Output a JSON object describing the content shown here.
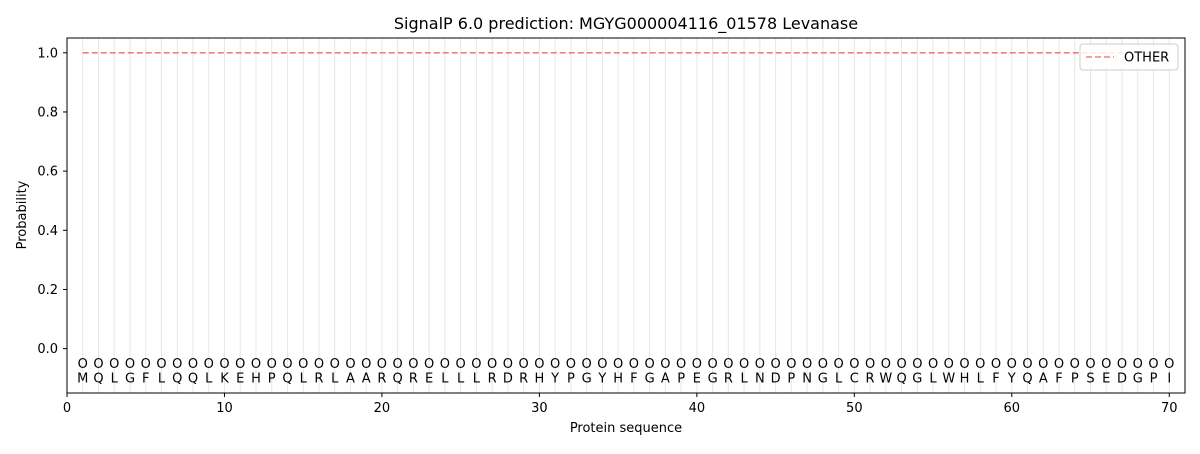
{
  "chart_data": {
    "type": "line",
    "title": "SignalP 6.0 prediction: MGYG000004116_01578 Levanase",
    "xlabel": "Protein sequence",
    "ylabel": "Probability",
    "xlim": [
      0,
      71
    ],
    "ylim": [
      -0.15,
      1.05
    ],
    "x_ticks": [
      0,
      10,
      20,
      30,
      40,
      50,
      60,
      70
    ],
    "y_ticks": [
      0.0,
      0.2,
      0.4,
      0.6,
      0.8,
      1.0
    ],
    "sequence": [
      "M",
      "Q",
      "L",
      "G",
      "F",
      "L",
      "Q",
      "Q",
      "L",
      "K",
      "E",
      "H",
      "P",
      "Q",
      "L",
      "R",
      "L",
      "A",
      "A",
      "R",
      "Q",
      "R",
      "E",
      "L",
      "L",
      "L",
      "R",
      "D",
      "R",
      "H",
      "Y",
      "P",
      "G",
      "Y",
      "H",
      "F",
      "G",
      "A",
      "P",
      "E",
      "G",
      "R",
      "L",
      "N",
      "D",
      "P",
      "N",
      "G",
      "L",
      "C",
      "R",
      "W",
      "Q",
      "G",
      "L",
      "W",
      "H",
      "L",
      "F",
      "Y",
      "Q",
      "A",
      "F",
      "P",
      "S",
      "E",
      "D",
      "G",
      "P",
      "I"
    ],
    "state_label": "O",
    "series": [
      {
        "name": "OTHER",
        "x_start": 1,
        "x_end": 70,
        "value": 1.0,
        "style": "dashed",
        "color": "#f08080"
      }
    ],
    "grid": "vertical lines at each residue",
    "legend": "top-right"
  }
}
